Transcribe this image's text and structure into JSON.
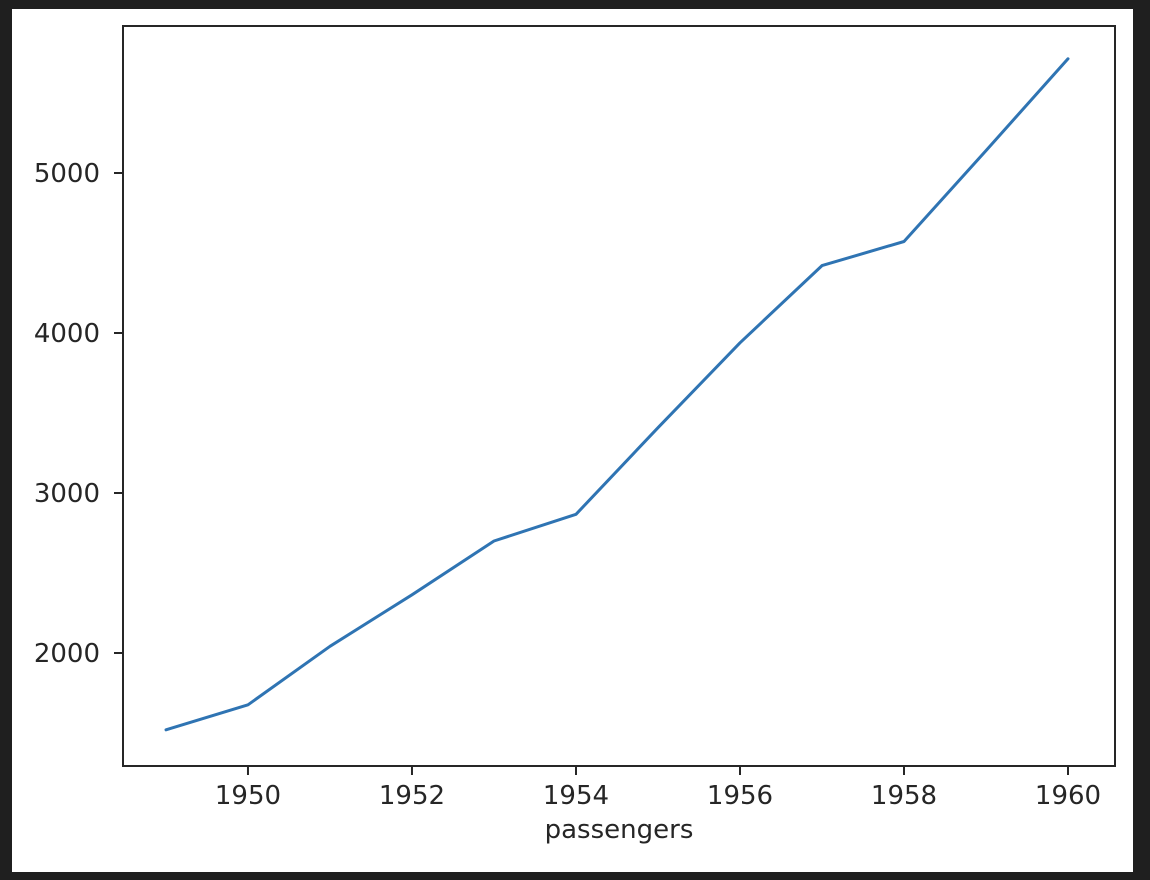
{
  "figure": {
    "page_background": "#1f1f1f",
    "figure_background": "#ffffff",
    "axis_color": "#262626",
    "text_color": "#262626"
  },
  "chart_data": {
    "type": "line",
    "title": "",
    "xlabel": "passengers",
    "ylabel": "",
    "x": [
      1949,
      1950,
      1951,
      1952,
      1953,
      1954,
      1955,
      1956,
      1957,
      1958,
      1959,
      1960
    ],
    "series": [
      {
        "name": "passengers",
        "color": "#2f74b3",
        "values": [
          1520,
          1676,
          2042,
          2364,
          2700,
          2867,
          3408,
          3939,
          4421,
          4572,
          5140,
          5714
        ]
      }
    ],
    "x_ticks": [
      1950,
      1952,
      1954,
      1956,
      1958,
      1960
    ],
    "y_ticks": [
      2000,
      3000,
      4000,
      5000
    ],
    "xlim": [
      1948.476,
      1960.573
    ],
    "ylim": [
      1293.75,
      5918.75
    ],
    "grid": false,
    "legend": false
  }
}
